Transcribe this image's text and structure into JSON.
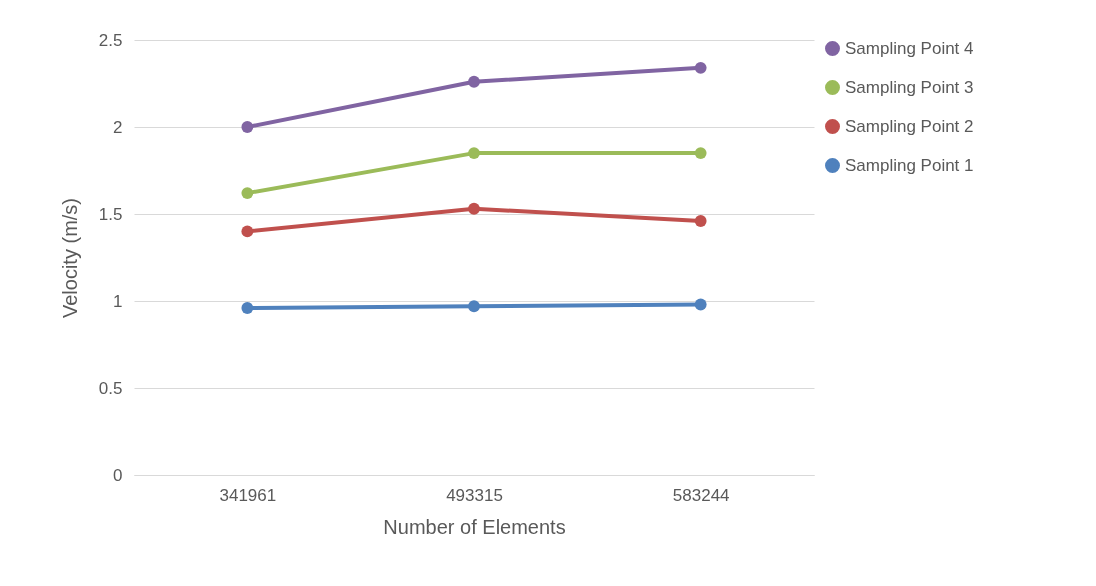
{
  "chart_data": {
    "type": "line",
    "xlabel": "Number of Elements",
    "ylabel": "Velocity (m/s)",
    "categories": [
      "341961",
      "493315",
      "583244"
    ],
    "series": [
      {
        "name": "Sampling Point 4",
        "color": "#8064a2",
        "values": [
          2.0,
          2.26,
          2.34
        ]
      },
      {
        "name": "Sampling Point 3",
        "color": "#9bbb59",
        "values": [
          1.62,
          1.85,
          1.85
        ]
      },
      {
        "name": "Sampling Point 2",
        "color": "#c0504d",
        "values": [
          1.4,
          1.53,
          1.46
        ]
      },
      {
        "name": "Sampling Point 1",
        "color": "#4f81bd",
        "values": [
          0.96,
          0.97,
          0.98
        ]
      }
    ],
    "ylim": [
      0,
      2.5
    ],
    "yticks": [
      0,
      0.5,
      1,
      1.5,
      2,
      2.5
    ],
    "grid": "y",
    "legend": "right",
    "marker": "circle",
    "line_style": "solid"
  }
}
